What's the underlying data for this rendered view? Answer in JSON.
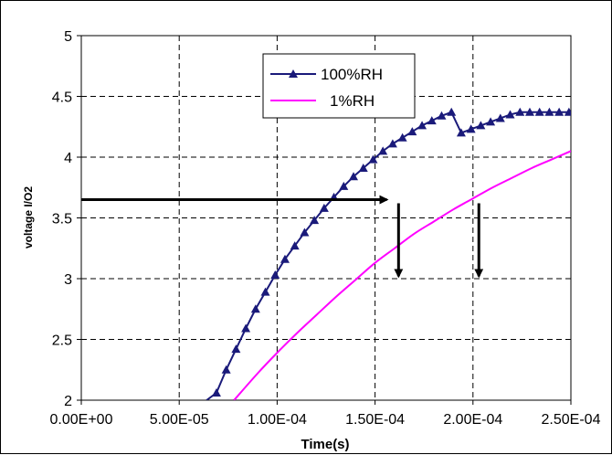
{
  "chart_data": {
    "type": "line",
    "xlabel": "Time(s)",
    "ylabel": "voltage I/O2",
    "xlim": [
      0,
      0.00025
    ],
    "ylim": [
      2,
      5
    ],
    "x_ticks": [
      {
        "value": 0,
        "label": "0.00E+00"
      },
      {
        "value": 5e-05,
        "label": "5.00E-05"
      },
      {
        "value": 0.0001,
        "label": "1.00E-04"
      },
      {
        "value": 0.00015,
        "label": "1.50E-04"
      },
      {
        "value": 0.0002,
        "label": "2.00E-04"
      },
      {
        "value": 0.00025,
        "label": "2.50E-04"
      }
    ],
    "y_ticks": [
      {
        "value": 2,
        "label": "2"
      },
      {
        "value": 2.5,
        "label": "2.5"
      },
      {
        "value": 3,
        "label": "3"
      },
      {
        "value": 3.5,
        "label": "3.5"
      },
      {
        "value": 4,
        "label": "4"
      },
      {
        "value": 4.5,
        "label": "4.5"
      },
      {
        "value": 5,
        "label": "5"
      }
    ],
    "grid": true,
    "legend_position": "top-center",
    "series": [
      {
        "name": "100%RH",
        "color": "#1a1a7a",
        "marker": "triangle",
        "x": [
          6.4e-05,
          6.9e-05,
          7.4e-05,
          7.9e-05,
          8.4e-05,
          8.9e-05,
          9.4e-05,
          9.9e-05,
          0.000104,
          0.000109,
          0.000114,
          0.000119,
          0.000124,
          0.000129,
          0.000134,
          0.000139,
          0.000144,
          0.000149,
          0.000154,
          0.000159,
          0.000164,
          0.000169,
          0.000174,
          0.000179,
          0.000184,
          0.000189,
          0.000194,
          0.000199,
          0.000204,
          0.000209,
          0.000214,
          0.000219,
          0.000224,
          0.000229,
          0.000234,
          0.000239,
          0.000244,
          0.000249
        ],
        "y": [
          2.0,
          2.06,
          2.25,
          2.42,
          2.59,
          2.75,
          2.89,
          3.03,
          3.16,
          3.27,
          3.38,
          3.48,
          3.58,
          3.67,
          3.76,
          3.84,
          3.91,
          3.98,
          4.05,
          4.11,
          4.16,
          4.21,
          4.26,
          4.3,
          4.34,
          4.37,
          4.2,
          4.23,
          4.26,
          4.29,
          4.32,
          4.35,
          4.37,
          4.37,
          4.37,
          4.37,
          4.37,
          4.37
        ]
      },
      {
        "name": "1%RH",
        "color": "#ff00ff",
        "marker": "none",
        "x": [
          7.8e-05,
          9e-05,
          0.0001,
          0.00011,
          0.00012,
          0.00013,
          0.00014,
          0.00015,
          0.00016,
          0.00017,
          0.00018,
          0.00019,
          0.0002,
          0.00021,
          0.00022,
          0.00023,
          0.00024,
          0.00025
        ],
        "y": [
          2.0,
          2.22,
          2.39,
          2.55,
          2.7,
          2.85,
          2.99,
          3.13,
          3.25,
          3.37,
          3.47,
          3.57,
          3.66,
          3.75,
          3.83,
          3.91,
          3.98,
          4.05
        ]
      }
    ],
    "annotations": [
      {
        "type": "arrow-horizontal",
        "from": [
          0.0,
          3.65
        ],
        "to": [
          0.000156,
          3.65
        ]
      },
      {
        "type": "arrow-down",
        "from": [
          0.000162,
          3.62
        ],
        "to": [
          0.000162,
          3.02
        ]
      },
      {
        "type": "arrow-down",
        "from": [
          0.000203,
          3.62
        ],
        "to": [
          0.000203,
          3.02
        ]
      }
    ]
  }
}
